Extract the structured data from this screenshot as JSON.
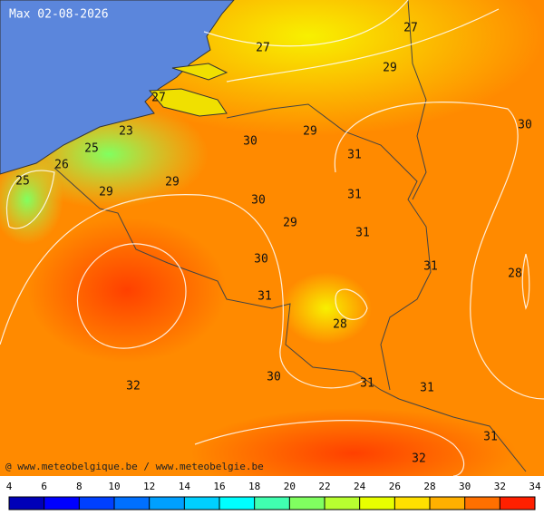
{
  "title": "Max 02-08-2026",
  "credit": "@ www.meteobelgique.be / www.meteobelgie.be",
  "isotherm_labels": [
    27,
    27,
    29,
    27,
    23,
    25,
    26,
    25,
    29,
    29,
    30,
    29,
    31,
    31,
    30,
    29,
    31,
    30,
    31,
    28,
    30,
    31,
    28,
    30,
    32,
    31,
    31,
    31,
    32
  ],
  "colorbar": {
    "ticks": [
      4,
      6,
      8,
      10,
      12,
      14,
      16,
      18,
      20,
      22,
      24,
      26,
      28,
      30,
      32,
      34
    ],
    "colors": [
      "#0000b8",
      "#0000ff",
      "#0040ff",
      "#0070ff",
      "#00a0ff",
      "#00d0ff",
      "#00ffff",
      "#40ffb0",
      "#80ff60",
      "#b8ff30",
      "#e8ff00",
      "#ffe000",
      "#ffb000",
      "#ff7000",
      "#ff2000"
    ]
  }
}
